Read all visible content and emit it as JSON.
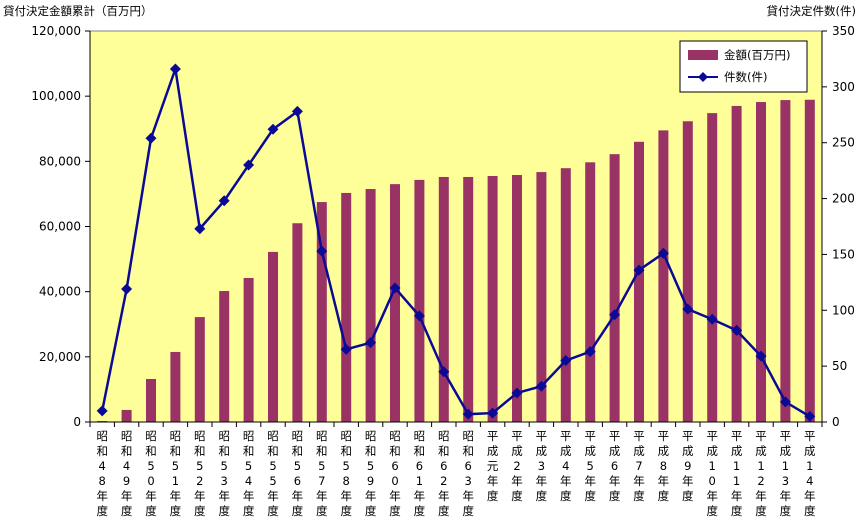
{
  "chart_data": {
    "type": "bar+line",
    "title_left": "貸付決定金額累計（百万円）",
    "title_right": "貸付決定件数(件)",
    "categories": [
      "昭和48年度",
      "昭和49年度",
      "昭和50年度",
      "昭和51年度",
      "昭和52年度",
      "昭和53年度",
      "昭和54年度",
      "昭和55年度",
      "昭和56年度",
      "昭和57年度",
      "昭和58年度",
      "昭和59年度",
      "昭和60年度",
      "昭和61年度",
      "昭和62年度",
      "昭和63年度",
      "平成元年度",
      "平成2年度",
      "平成3年度",
      "平成4年度",
      "平成5年度",
      "平成6年度",
      "平成7年度",
      "平成8年度",
      "平成9年度",
      "平成10年度",
      "平成11年度",
      "平成12年度",
      "平成13年度",
      "平成14年度"
    ],
    "y_left": {
      "min": 0,
      "max": 120000,
      "ticks": [
        "0",
        "20,000",
        "40,000",
        "60,000",
        "80,000",
        "100,000",
        "120,000"
      ]
    },
    "y_right": {
      "min": 0,
      "max": 350,
      "ticks": [
        "0",
        "50",
        "100",
        "150",
        "200",
        "250",
        "300",
        "350"
      ]
    },
    "series": [
      {
        "name": "金額(百万円)",
        "kind": "bar",
        "axis": "left",
        "color": "#993366",
        "values": [
          300,
          3700,
          13200,
          21500,
          32200,
          40200,
          44200,
          52200,
          61000,
          67500,
          70300,
          71500,
          73000,
          74300,
          75200,
          75200,
          75500,
          75800,
          76700,
          77900,
          79700,
          82200,
          86000,
          89500,
          92300,
          94800,
          97000,
          98200,
          98800,
          98900
        ]
      },
      {
        "name": "件数(件)",
        "kind": "line",
        "axis": "right",
        "color": "#0A0A96",
        "values": [
          10,
          119,
          254,
          316,
          173,
          198,
          230,
          262,
          278,
          153,
          65,
          71,
          120,
          95,
          45,
          7,
          8,
          26,
          32,
          55,
          63,
          96,
          136,
          151,
          101,
          92,
          82,
          59,
          18,
          5
        ]
      }
    ],
    "legend_position": "top-right",
    "colors": {
      "plot_bg": "#FFFF99",
      "bar": "#993366",
      "line": "#0A0A96"
    }
  }
}
